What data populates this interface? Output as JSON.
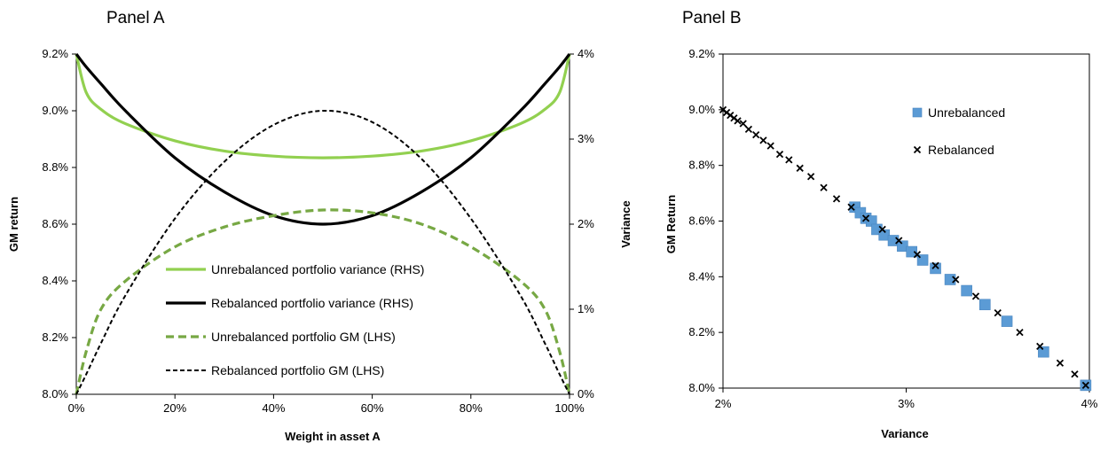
{
  "chart_data": [
    {
      "panel": "Panel A",
      "type": "line",
      "title": "Panel A",
      "xlabel": "Weight in asset A",
      "ylabel_left": "GM return",
      "ylabel_right": "Variance",
      "xlim": [
        0,
        100
      ],
      "ylim_left": [
        8.0,
        9.2
      ],
      "ylim_right": [
        0,
        4
      ],
      "x_ticks": [
        "0%",
        "20%",
        "40%",
        "60%",
        "80%",
        "100%"
      ],
      "y_left_ticks": [
        "8.0%",
        "8.2%",
        "8.4%",
        "8.6%",
        "8.8%",
        "9.0%",
        "9.2%"
      ],
      "y_right_ticks": [
        "0%",
        "1%",
        "2%",
        "3%",
        "4%"
      ],
      "x": [
        0,
        2,
        5,
        10,
        20,
        30,
        40,
        50,
        60,
        70,
        80,
        90,
        95,
        98,
        100
      ],
      "series": [
        {
          "name": "Unrebalanced portfolio variance (RHS)",
          "axis": "right",
          "color": "#92D050",
          "style": "solid",
          "values": [
            4.0,
            3.55,
            3.35,
            3.18,
            2.98,
            2.86,
            2.8,
            2.78,
            2.8,
            2.86,
            2.98,
            3.18,
            3.35,
            3.55,
            4.0
          ]
        },
        {
          "name": "Rebalanced portfolio variance (RHS)",
          "axis": "right",
          "color": "#000000",
          "style": "solid",
          "values": [
            4.0,
            3.85,
            3.65,
            3.33,
            2.78,
            2.38,
            2.1,
            2.0,
            2.1,
            2.38,
            2.78,
            3.33,
            3.65,
            3.85,
            4.0
          ]
        },
        {
          "name": "Unrebalanced portfolio GM (LHS)",
          "axis": "left",
          "color": "#77A844",
          "style": "dashed",
          "values": [
            8.0,
            8.15,
            8.3,
            8.4,
            8.52,
            8.59,
            8.63,
            8.65,
            8.64,
            8.6,
            8.52,
            8.4,
            8.3,
            8.15,
            8.0
          ]
        },
        {
          "name": "Rebalanced portfolio GM (LHS)",
          "axis": "left",
          "color": "#000000",
          "style": "dashed",
          "values": [
            8.0,
            8.07,
            8.18,
            8.35,
            8.62,
            8.82,
            8.95,
            9.0,
            8.96,
            8.83,
            8.62,
            8.35,
            8.18,
            8.07,
            8.0
          ]
        }
      ],
      "legend_position": "lower-center"
    },
    {
      "panel": "Panel B",
      "type": "scatter",
      "title": "Panel B",
      "xlabel": "Variance",
      "ylabel": "GM Return",
      "xlim": [
        2,
        4
      ],
      "ylim": [
        8.0,
        9.2
      ],
      "x_ticks": [
        "2%",
        "3%",
        "4%"
      ],
      "y_ticks": [
        "8.0%",
        "8.2%",
        "8.4%",
        "8.6%",
        "8.8%",
        "9.0%",
        "9.2%"
      ],
      "series": [
        {
          "name": "Unrebalanced",
          "marker": "square",
          "color": "#5B9BD5",
          "x": [
            2.72,
            2.75,
            2.78,
            2.81,
            2.84,
            2.88,
            2.93,
            2.98,
            3.03,
            3.09,
            3.16,
            3.24,
            3.33,
            3.43,
            3.55,
            3.75,
            3.98
          ],
          "y": [
            8.65,
            8.63,
            8.61,
            8.6,
            8.57,
            8.55,
            8.53,
            8.51,
            8.49,
            8.46,
            8.43,
            8.39,
            8.35,
            8.3,
            8.24,
            8.13,
            8.01
          ]
        },
        {
          "name": "Rebalanced",
          "marker": "x",
          "color": "#000000",
          "x": [
            2.0,
            2.02,
            2.04,
            2.06,
            2.08,
            2.11,
            2.14,
            2.18,
            2.22,
            2.26,
            2.31,
            2.36,
            2.42,
            2.48,
            2.55,
            2.62,
            2.7,
            2.78,
            2.87,
            2.96,
            3.06,
            3.16,
            3.27,
            3.38,
            3.5,
            3.62,
            3.73,
            3.84,
            3.92,
            3.98
          ],
          "y": [
            9.0,
            8.99,
            8.98,
            8.97,
            8.96,
            8.95,
            8.93,
            8.91,
            8.89,
            8.87,
            8.84,
            8.82,
            8.79,
            8.76,
            8.72,
            8.68,
            8.65,
            8.61,
            8.57,
            8.53,
            8.48,
            8.44,
            8.39,
            8.33,
            8.27,
            8.2,
            8.15,
            8.09,
            8.05,
            8.01
          ]
        }
      ],
      "legend_position": "top-right"
    }
  ]
}
